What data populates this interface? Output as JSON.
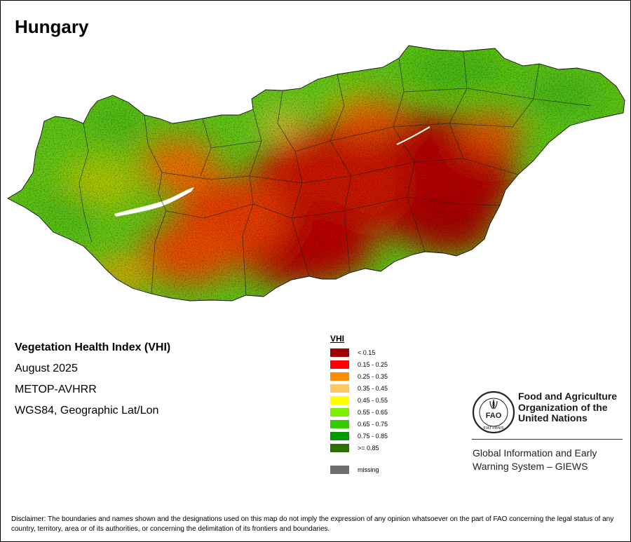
{
  "map": {
    "title": "Hungary",
    "index_name": "Vegetation Health Index (VHI)",
    "period": "August 2025",
    "sensor": "METOP-AVHRR",
    "projection": "WGS84, Geographic Lat/Lon"
  },
  "legend": {
    "title": "VHI",
    "classes": [
      {
        "label": "< 0.15",
        "color": "#a00000"
      },
      {
        "label": "0.15 - 0.25",
        "color": "#ff0000"
      },
      {
        "label": "0.25 - 0.35",
        "color": "#ff8c00"
      },
      {
        "label": "0.35 - 0.45",
        "color": "#ffc866"
      },
      {
        "label": "0.45 - 0.55",
        "color": "#ffff00"
      },
      {
        "label": "0.55 - 0.65",
        "color": "#7cf000"
      },
      {
        "label": "0.65 - 0.75",
        "color": "#33cc00"
      },
      {
        "label": "0.75 - 0.85",
        "color": "#009900"
      },
      {
        "label": ">= 0.85",
        "color": "#2e7000"
      }
    ],
    "missing": {
      "label": "missing",
      "color": "#6e6e6e"
    }
  },
  "org": {
    "logo_text": "FAO",
    "logo_motto": "FIAT PANIS",
    "name_lines": [
      "Food and Agriculture",
      "Organization of the",
      "United Nations"
    ],
    "system_lines": [
      "Global Information and Early",
      "Warning System – GIEWS"
    ]
  },
  "disclaimer": "Disclaimer: The boundaries and names shown and the designations used on this map do not imply the expression of any opinion whatsoever on the part of FAO concerning the legal status of any country, territory, area or of its authorities, or concerning the delimitation of its frontiers and boundaries."
}
